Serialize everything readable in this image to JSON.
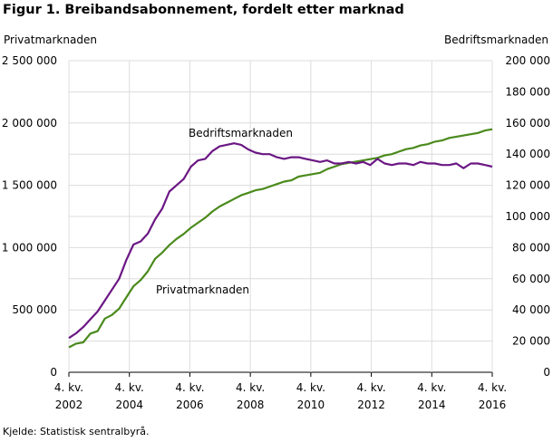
{
  "title": "Figur 1. Breibandsabonnement, fordelt etter marknad",
  "source": "Kjelde: Statistisk sentralbyrå.",
  "chart_data": {
    "type": "line",
    "title": "Figur 1. Breibandsabonnement, fordelt etter marknad",
    "left_axis_label": "Privatmarknaden",
    "right_axis_label": "Bedriftsmarknaden",
    "left_ylim": [
      0,
      2500000
    ],
    "right_ylim": [
      0,
      200000
    ],
    "left_ticks": [
      "0",
      "500 000",
      "1 000 000",
      "1 500 000",
      "2 000 000",
      "2 500 000"
    ],
    "right_ticks": [
      "0",
      "20 000",
      "40 000",
      "60 000",
      "80 000",
      "100 000",
      "120 000",
      "140 000",
      "160 000",
      "180 000",
      "200 000"
    ],
    "x_ticks": [
      {
        "q": "4. kv.",
        "y": "2002"
      },
      {
        "q": "4. kv.",
        "y": "2004"
      },
      {
        "q": "4. kv.",
        "y": "2006"
      },
      {
        "q": "4. kv.",
        "y": "2008"
      },
      {
        "q": "4. kv.",
        "y": "2010"
      },
      {
        "q": "4. kv.",
        "y": "2012"
      },
      {
        "q": "4. kv.",
        "y": "2014"
      },
      {
        "q": "4. kv.",
        "y": "2016"
      }
    ],
    "grid": true,
    "series": [
      {
        "name": "Privatmarknaden",
        "axis": "left",
        "color": "#4a8a1c",
        "values": [
          200000,
          230000,
          240000,
          310000,
          330000,
          430000,
          460000,
          510000,
          600000,
          690000,
          740000,
          810000,
          910000,
          960000,
          1020000,
          1070000,
          1110000,
          1160000,
          1200000,
          1240000,
          1290000,
          1330000,
          1360000,
          1390000,
          1420000,
          1440000,
          1460000,
          1470000,
          1490000,
          1510000,
          1530000,
          1540000,
          1570000,
          1580000,
          1590000,
          1600000,
          1630000,
          1650000,
          1670000,
          1680000,
          1690000,
          1700000,
          1710000,
          1720000,
          1740000,
          1750000,
          1770000,
          1790000,
          1800000,
          1820000,
          1830000,
          1850000,
          1860000,
          1880000,
          1890000,
          1900000,
          1910000,
          1920000,
          1940000,
          1950000
        ]
      },
      {
        "name": "Bedriftsmarknaden",
        "axis": "right",
        "color": "#6b1784",
        "values": [
          22000,
          25000,
          29000,
          34000,
          39000,
          46000,
          53000,
          60000,
          72000,
          82000,
          84000,
          89000,
          98000,
          105000,
          116000,
          120000,
          124000,
          132000,
          136000,
          137000,
          142000,
          145000,
          146000,
          147000,
          146000,
          143000,
          141000,
          140000,
          140000,
          138000,
          137000,
          138000,
          138000,
          137000,
          136000,
          135000,
          136000,
          134000,
          134000,
          135000,
          134000,
          135000,
          133000,
          137000,
          134000,
          133000,
          134000,
          134000,
          133000,
          135000,
          134000,
          134000,
          133000,
          133000,
          134000,
          131000,
          134000,
          134000,
          133000,
          132000
        ]
      }
    ],
    "annotations": [
      {
        "text": "Bedriftsmarknaden",
        "series": 1
      },
      {
        "text": "Privatmarknaden",
        "series": 0
      }
    ]
  }
}
